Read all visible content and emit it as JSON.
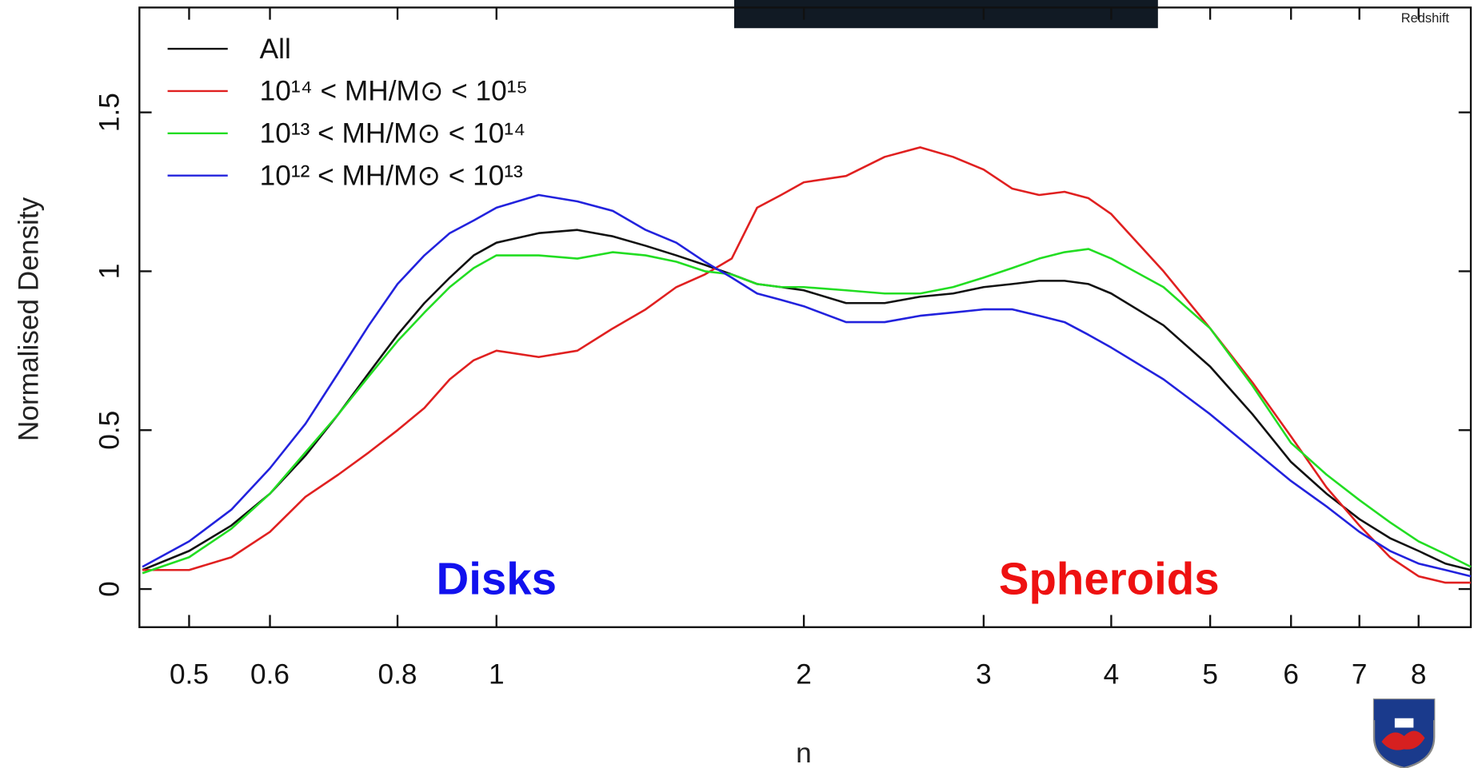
{
  "header_label": "Redshift",
  "chart_data": {
    "type": "line",
    "xlabel": "n",
    "ylabel": "Normalised Density",
    "xscale": "log",
    "xlim": [
      0.447,
      9.0
    ],
    "ylim": [
      -0.12,
      1.83
    ],
    "xticks": [
      0.5,
      0.6,
      0.8,
      1,
      2,
      3,
      4,
      5,
      6,
      7,
      8
    ],
    "yticks": [
      0,
      0.5,
      1,
      1.5
    ],
    "legend": "upper left",
    "annotations": [
      "Disks",
      "Spheroids"
    ],
    "x": [
      0.45,
      0.5,
      0.55,
      0.6,
      0.65,
      0.7,
      0.75,
      0.8,
      0.85,
      0.9,
      0.95,
      1.0,
      1.1,
      1.2,
      1.3,
      1.4,
      1.5,
      1.6,
      1.7,
      1.8,
      1.9,
      2.0,
      2.2,
      2.4,
      2.6,
      2.8,
      3.0,
      3.2,
      3.4,
      3.6,
      3.8,
      4.0,
      4.5,
      5.0,
      5.5,
      6.0,
      6.5,
      7.0,
      7.5,
      8.0,
      8.5,
      9.0
    ],
    "series": [
      {
        "name": "All",
        "color": "#111111",
        "values": [
          0.06,
          0.12,
          0.2,
          0.3,
          0.42,
          0.55,
          0.68,
          0.8,
          0.9,
          0.98,
          1.05,
          1.09,
          1.12,
          1.13,
          1.11,
          1.08,
          1.05,
          1.02,
          0.99,
          0.96,
          0.95,
          0.94,
          0.9,
          0.9,
          0.92,
          0.93,
          0.95,
          0.96,
          0.97,
          0.97,
          0.96,
          0.93,
          0.83,
          0.7,
          0.55,
          0.4,
          0.3,
          0.22,
          0.16,
          0.12,
          0.08,
          0.06
        ]
      },
      {
        "name": "10¹⁴ < MH/M⊙ < 10¹⁵",
        "color": "#e02020",
        "values": [
          0.06,
          0.06,
          0.1,
          0.18,
          0.29,
          0.36,
          0.43,
          0.5,
          0.57,
          0.66,
          0.72,
          0.75,
          0.73,
          0.75,
          0.82,
          0.88,
          0.95,
          0.99,
          1.04,
          1.2,
          1.24,
          1.28,
          1.3,
          1.36,
          1.39,
          1.36,
          1.32,
          1.26,
          1.24,
          1.25,
          1.23,
          1.18,
          1.0,
          0.82,
          0.65,
          0.48,
          0.32,
          0.2,
          0.1,
          0.04,
          0.02,
          0.02
        ]
      },
      {
        "name": "10¹³ < MH/M⊙ < 10¹⁴",
        "color": "#22dd22",
        "values": [
          0.05,
          0.1,
          0.19,
          0.3,
          0.43,
          0.55,
          0.67,
          0.78,
          0.87,
          0.95,
          1.01,
          1.05,
          1.05,
          1.04,
          1.06,
          1.05,
          1.03,
          1.0,
          0.99,
          0.96,
          0.95,
          0.95,
          0.94,
          0.93,
          0.93,
          0.95,
          0.98,
          1.01,
          1.04,
          1.06,
          1.07,
          1.04,
          0.95,
          0.82,
          0.64,
          0.46,
          0.36,
          0.28,
          0.21,
          0.15,
          0.11,
          0.07
        ]
      },
      {
        "name": "10¹² < MH/M⊙ < 10¹³",
        "color": "#2222dd",
        "values": [
          0.07,
          0.15,
          0.25,
          0.38,
          0.52,
          0.68,
          0.83,
          0.96,
          1.05,
          1.12,
          1.16,
          1.2,
          1.24,
          1.22,
          1.19,
          1.13,
          1.09,
          1.03,
          0.98,
          0.93,
          0.91,
          0.89,
          0.84,
          0.84,
          0.86,
          0.87,
          0.88,
          0.88,
          0.86,
          0.84,
          0.8,
          0.76,
          0.66,
          0.55,
          0.44,
          0.34,
          0.26,
          0.18,
          0.12,
          0.08,
          0.06,
          0.04
        ]
      }
    ]
  }
}
